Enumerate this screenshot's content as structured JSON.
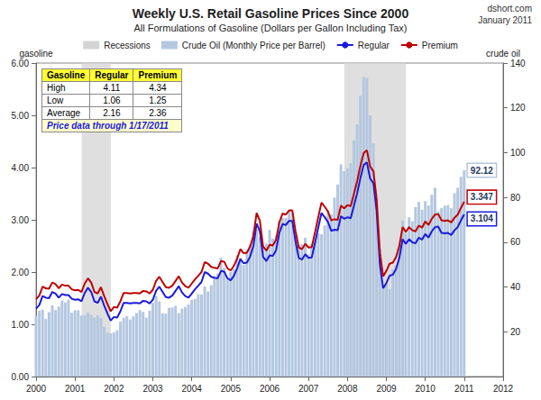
{
  "chart_data": {
    "type": "line",
    "title": "Weekly U.S. Retail Gasoline Prices Since 2000",
    "subtitle": "All Formulations of Gasoline (Dollars per Gallon Including Tax)",
    "source": "dshort.com",
    "date": "January 2011",
    "y_label": "gasoline",
    "y2_label": "crude oil",
    "legend": "top",
    "grid": false,
    "xlim": [
      2000,
      2012
    ],
    "xticks": [
      2000,
      2001,
      2002,
      2003,
      2004,
      2005,
      2006,
      2007,
      2008,
      2009,
      2010,
      2011,
      2012
    ],
    "ylim": [
      0,
      6
    ],
    "yticks": [
      {
        "value": 0,
        "label": "0.00"
      },
      {
        "value": 1,
        "label": "1.00"
      },
      {
        "value": 2,
        "label": "2.00"
      },
      {
        "value": 3,
        "label": "3.00"
      },
      {
        "value": 4,
        "label": "4.00"
      },
      {
        "value": 5,
        "label": "5.00"
      },
      {
        "value": 6,
        "label": "6.00"
      }
    ],
    "y2lim": [
      0,
      140
    ],
    "y2ticks": [
      20,
      40,
      60,
      80,
      100,
      120,
      140
    ],
    "recessions": {
      "name": "Recessions",
      "color": "#d4d4d4",
      "ranges": [
        [
          2001.17,
          2001.92
        ],
        [
          2007.92,
          2009.5
        ]
      ]
    },
    "x": [
      2000,
      2000.083,
      2000.167,
      2000.25,
      2000.333,
      2000.417,
      2000.5,
      2000.583,
      2000.667,
      2000.75,
      2000.833,
      2000.917,
      2001,
      2001.083,
      2001.167,
      2001.25,
      2001.333,
      2001.417,
      2001.5,
      2001.583,
      2001.667,
      2001.75,
      2001.833,
      2001.917,
      2002,
      2002.083,
      2002.167,
      2002.25,
      2002.333,
      2002.417,
      2002.5,
      2002.583,
      2002.667,
      2002.75,
      2002.833,
      2002.917,
      2003,
      2003.083,
      2003.167,
      2003.25,
      2003.333,
      2003.417,
      2003.5,
      2003.583,
      2003.667,
      2003.75,
      2003.833,
      2003.917,
      2004,
      2004.083,
      2004.167,
      2004.25,
      2004.333,
      2004.417,
      2004.5,
      2004.583,
      2004.667,
      2004.75,
      2004.833,
      2004.917,
      2005,
      2005.083,
      2005.167,
      2005.25,
      2005.333,
      2005.417,
      2005.5,
      2005.583,
      2005.667,
      2005.75,
      2005.833,
      2005.917,
      2006,
      2006.083,
      2006.167,
      2006.25,
      2006.333,
      2006.417,
      2006.5,
      2006.583,
      2006.667,
      2006.75,
      2006.833,
      2006.917,
      2007,
      2007.083,
      2007.167,
      2007.25,
      2007.333,
      2007.417,
      2007.5,
      2007.583,
      2007.667,
      2007.75,
      2007.833,
      2007.917,
      2008,
      2008.083,
      2008.167,
      2008.25,
      2008.333,
      2008.417,
      2008.5,
      2008.583,
      2008.667,
      2008.75,
      2008.833,
      2008.917,
      2009,
      2009.083,
      2009.167,
      2009.25,
      2009.333,
      2009.417,
      2009.5,
      2009.583,
      2009.667,
      2009.75,
      2009.833,
      2009.917,
      2010,
      2010.083,
      2010.167,
      2010.25,
      2010.333,
      2010.417,
      2010.5,
      2010.583,
      2010.667,
      2010.75,
      2010.833,
      2010.917,
      2011
    ],
    "series": [
      {
        "name": "Crude Oil (Monthly Price per Barrel)",
        "type": "bar",
        "axis": "y2",
        "color": "#b4c7e0",
        "values": [
          27.2,
          29.4,
          29.9,
          25.7,
          28.8,
          31.8,
          29.7,
          31.3,
          33.9,
          33.1,
          34.4,
          28.5,
          29.6,
          29.6,
          27.2,
          27.4,
          28.6,
          27.6,
          26.4,
          27.4,
          26.2,
          22.2,
          19.6,
          19.3,
          19.7,
          20.7,
          24.5,
          26.2,
          27.0,
          25.5,
          26.9,
          28.4,
          29.7,
          28.9,
          26.3,
          29.4,
          32.9,
          35.9,
          33.6,
          28.3,
          28.1,
          30.7,
          30.8,
          31.6,
          28.3,
          30.3,
          31.1,
          32.2,
          34.3,
          34.7,
          36.8,
          36.7,
          40.3,
          38.0,
          40.8,
          44.9,
          46.0,
          53.1,
          48.5,
          43.3,
          46.8,
          48.1,
          54.2,
          53.0,
          49.8,
          56.3,
          59.0,
          65.0,
          65.6,
          62.3,
          58.3,
          59.4,
          65.5,
          61.6,
          62.9,
          69.4,
          70.8,
          70.9,
          74.4,
          73.0,
          63.8,
          58.9,
          59.1,
          62.0,
          54.5,
          59.3,
          60.4,
          63.9,
          63.5,
          67.5,
          74.1,
          72.4,
          79.9,
          85.8,
          94.8,
          91.7,
          93.0,
          95.4,
          105.5,
          112.6,
          125.4,
          133.9,
          133.4,
          116.7,
          104.1,
          76.6,
          57.3,
          41.1,
          41.7,
          39.1,
          47.9,
          49.6,
          59.0,
          69.6,
          64.2,
          71.1,
          69.4,
          75.7,
          78.0,
          74.5,
          78.3,
          76.4,
          81.2,
          84.3,
          73.7,
          75.3,
          76.3,
          76.6,
          75.2,
          81.9,
          84.3,
          89.2,
          92.12
        ]
      },
      {
        "name": "Regular",
        "type": "line",
        "color": "#1a1adb",
        "values": [
          1.3,
          1.37,
          1.54,
          1.51,
          1.5,
          1.62,
          1.59,
          1.51,
          1.58,
          1.56,
          1.56,
          1.49,
          1.47,
          1.48,
          1.44,
          1.6,
          1.7,
          1.62,
          1.44,
          1.41,
          1.53,
          1.36,
          1.21,
          1.07,
          1.14,
          1.13,
          1.25,
          1.41,
          1.41,
          1.4,
          1.41,
          1.41,
          1.4,
          1.45,
          1.44,
          1.4,
          1.47,
          1.64,
          1.72,
          1.62,
          1.52,
          1.51,
          1.55,
          1.64,
          1.73,
          1.61,
          1.54,
          1.51,
          1.59,
          1.67,
          1.74,
          1.81,
          2.0,
          1.97,
          1.91,
          1.89,
          1.88,
          2.02,
          2.01,
          1.88,
          1.84,
          1.93,
          2.07,
          2.25,
          2.17,
          2.18,
          2.3,
          2.5,
          2.93,
          2.78,
          2.29,
          2.21,
          2.32,
          2.31,
          2.42,
          2.75,
          2.92,
          2.9,
          2.98,
          2.98,
          2.58,
          2.27,
          2.24,
          2.34,
          2.27,
          2.28,
          2.56,
          2.85,
          3.13,
          3.05,
          2.96,
          2.79,
          2.81,
          2.8,
          3.07,
          3.02,
          3.05,
          3.03,
          3.27,
          3.51,
          3.8,
          4.05,
          4.1,
          3.79,
          3.7,
          3.17,
          2.15,
          1.69,
          1.79,
          1.93,
          1.95,
          2.06,
          2.27,
          2.63,
          2.54,
          2.63,
          2.57,
          2.55,
          2.66,
          2.62,
          2.73,
          2.66,
          2.78,
          2.86,
          2.87,
          2.75,
          2.74,
          2.75,
          2.71,
          2.8,
          2.86,
          2.99,
          3.104
        ]
      },
      {
        "name": "Premium",
        "type": "line",
        "color": "#c00000",
        "values": [
          1.48,
          1.55,
          1.72,
          1.69,
          1.68,
          1.8,
          1.77,
          1.69,
          1.76,
          1.74,
          1.74,
          1.67,
          1.65,
          1.66,
          1.62,
          1.78,
          1.88,
          1.8,
          1.62,
          1.59,
          1.71,
          1.54,
          1.39,
          1.25,
          1.33,
          1.32,
          1.44,
          1.6,
          1.6,
          1.59,
          1.6,
          1.6,
          1.59,
          1.64,
          1.63,
          1.59,
          1.66,
          1.83,
          1.91,
          1.81,
          1.71,
          1.7,
          1.74,
          1.83,
          1.92,
          1.8,
          1.73,
          1.7,
          1.78,
          1.86,
          1.93,
          2.0,
          2.19,
          2.16,
          2.1,
          2.08,
          2.07,
          2.21,
          2.2,
          2.07,
          2.03,
          2.12,
          2.26,
          2.44,
          2.36,
          2.37,
          2.49,
          2.69,
          3.13,
          2.98,
          2.49,
          2.41,
          2.52,
          2.51,
          2.62,
          2.95,
          3.12,
          3.1,
          3.18,
          3.18,
          2.78,
          2.47,
          2.44,
          2.54,
          2.47,
          2.48,
          2.76,
          3.05,
          3.33,
          3.25,
          3.16,
          2.99,
          3.01,
          3.0,
          3.27,
          3.22,
          3.28,
          3.26,
          3.5,
          3.74,
          4.03,
          4.28,
          4.33,
          4.02,
          3.93,
          3.4,
          2.38,
          1.92,
          2.02,
          2.16,
          2.18,
          2.29,
          2.5,
          2.86,
          2.77,
          2.86,
          2.8,
          2.78,
          2.89,
          2.85,
          2.97,
          2.9,
          3.02,
          3.1,
          3.11,
          2.99,
          2.98,
          2.99,
          2.95,
          3.04,
          3.1,
          3.23,
          3.347
        ]
      }
    ],
    "annotations": [
      {
        "text": "92.12",
        "series": "Crude Oil (Monthly Price per Barrel)",
        "x": 2011,
        "y": 92.12
      },
      {
        "text": "3.347",
        "series": "Premium",
        "x": 2011,
        "y": 3.347
      },
      {
        "text": "3.104",
        "series": "Regular",
        "x": 2011,
        "y": 3.104
      }
    ],
    "stats_table": {
      "header": [
        "Gasoline",
        "Regular",
        "Premium"
      ],
      "rows": [
        [
          "High",
          4.11,
          4.34
        ],
        [
          "Low",
          1.06,
          1.25
        ],
        [
          "Average",
          2.16,
          2.36
        ]
      ],
      "note": "Price data through 1/17/2011"
    }
  }
}
